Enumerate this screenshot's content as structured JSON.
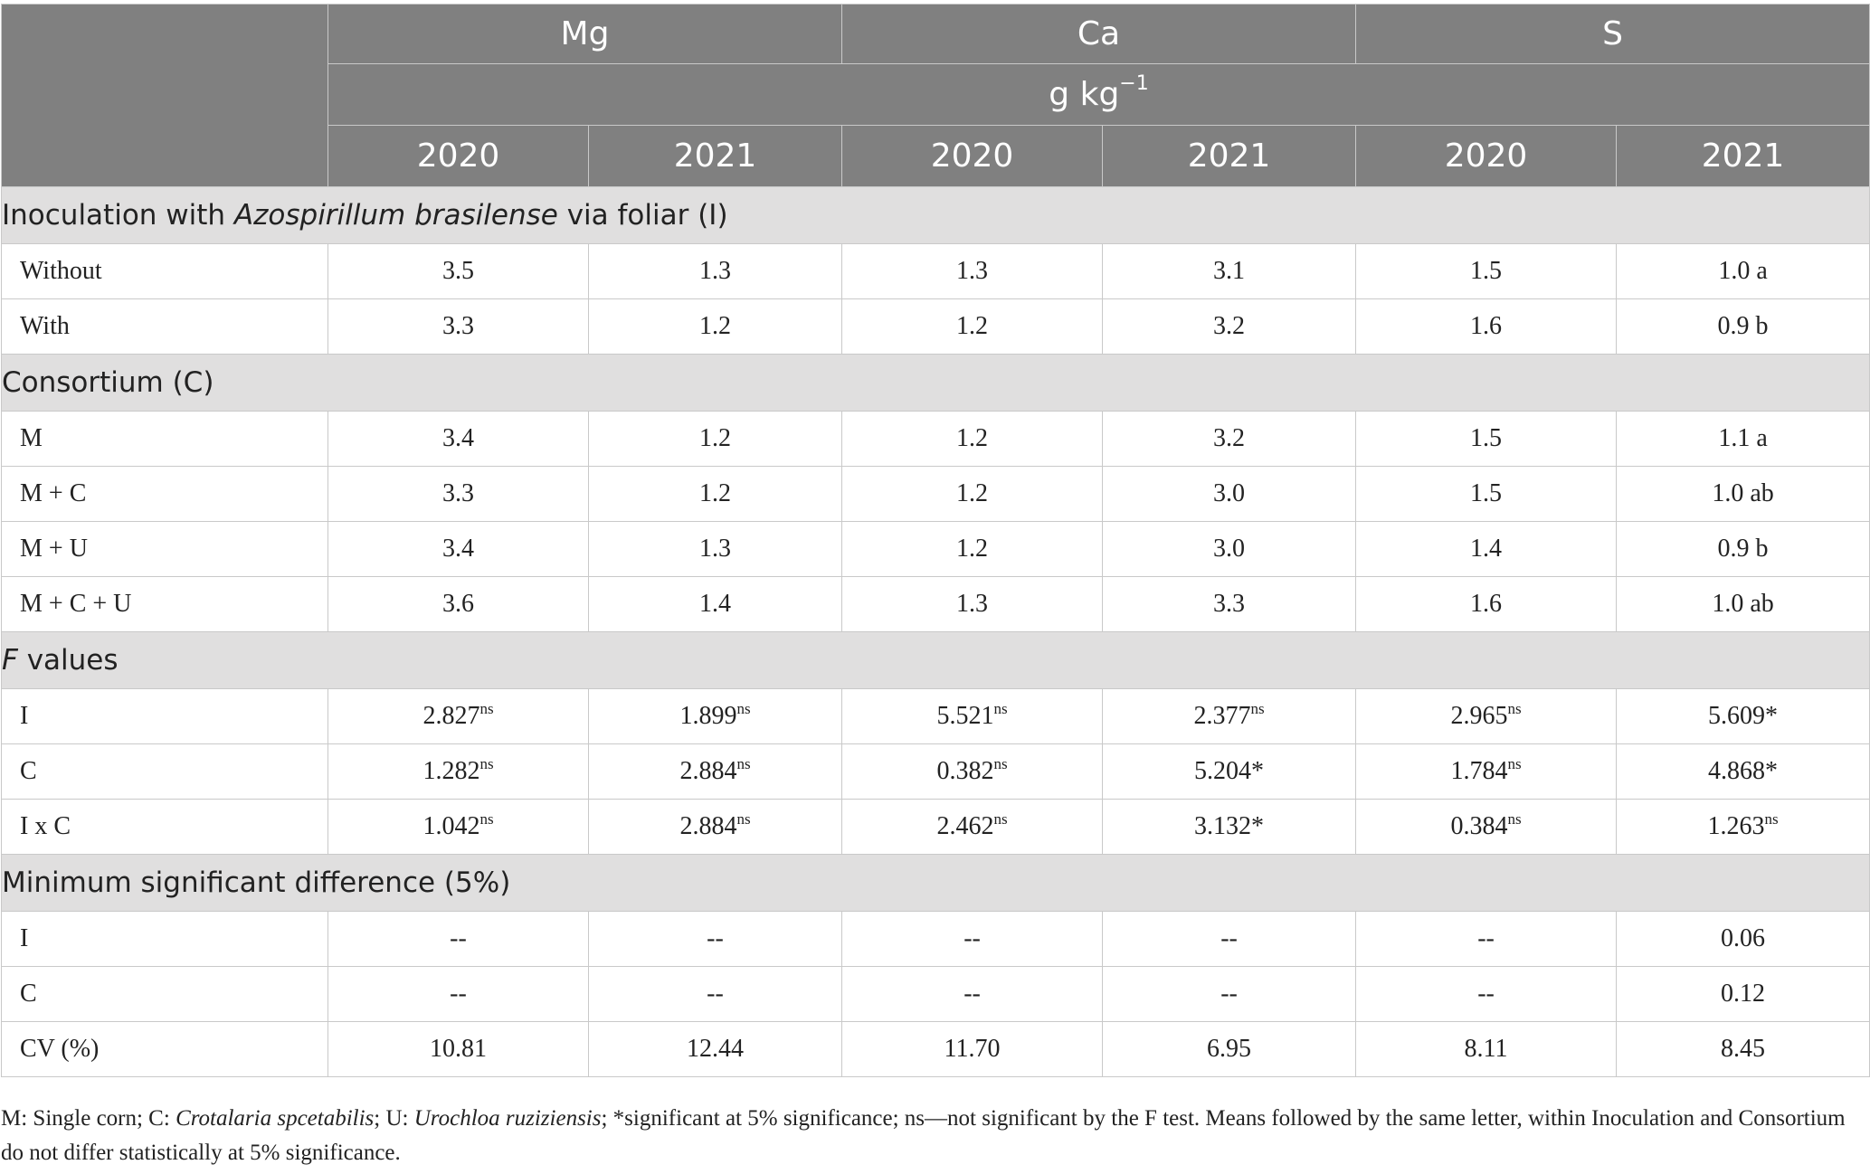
{
  "header": {
    "groups": [
      "Mg",
      "Ca",
      "S"
    ],
    "unit_base": "g kg",
    "unit_sup": "−1",
    "years": [
      "2020",
      "2021",
      "2020",
      "2021",
      "2020",
      "2021"
    ]
  },
  "sections": [
    {
      "title_pre": "Inoculation with ",
      "title_em": "Azospirillum brasilense",
      "title_post": " via foliar (I)",
      "rows": [
        {
          "label": "Without",
          "cells": [
            {
              "v": "3.5"
            },
            {
              "v": "1.3"
            },
            {
              "v": "1.3"
            },
            {
              "v": "3.1"
            },
            {
              "v": "1.5"
            },
            {
              "v": "1.0 a"
            }
          ]
        },
        {
          "label": "With",
          "cells": [
            {
              "v": "3.3"
            },
            {
              "v": "1.2"
            },
            {
              "v": "1.2"
            },
            {
              "v": "3.2"
            },
            {
              "v": "1.6"
            },
            {
              "v": "0.9 b"
            }
          ]
        }
      ]
    },
    {
      "title_pre": "Consortium (C)",
      "title_em": "",
      "title_post": "",
      "rows": [
        {
          "label": "M",
          "cells": [
            {
              "v": "3.4"
            },
            {
              "v": "1.2"
            },
            {
              "v": "1.2"
            },
            {
              "v": "3.2"
            },
            {
              "v": "1.5"
            },
            {
              "v": "1.1 a"
            }
          ]
        },
        {
          "label": "M + C",
          "cells": [
            {
              "v": "3.3"
            },
            {
              "v": "1.2"
            },
            {
              "v": "1.2"
            },
            {
              "v": "3.0"
            },
            {
              "v": "1.5"
            },
            {
              "v": "1.0 ab"
            }
          ]
        },
        {
          "label": "M + U",
          "cells": [
            {
              "v": "3.4"
            },
            {
              "v": "1.3"
            },
            {
              "v": "1.2"
            },
            {
              "v": "3.0"
            },
            {
              "v": "1.4"
            },
            {
              "v": "0.9 b"
            }
          ]
        },
        {
          "label": "M + C + U",
          "cells": [
            {
              "v": "3.6"
            },
            {
              "v": "1.4"
            },
            {
              "v": "1.3"
            },
            {
              "v": "3.3"
            },
            {
              "v": "1.6"
            },
            {
              "v": "1.0 ab"
            }
          ]
        }
      ]
    },
    {
      "title_pre": "",
      "title_em": "F",
      "title_post": " values",
      "rows": [
        {
          "label": "I",
          "cells": [
            {
              "v": "2.827",
              "sup": "ns"
            },
            {
              "v": "1.899",
              "sup": "ns"
            },
            {
              "v": "5.521",
              "sup": "ns"
            },
            {
              "v": "2.377",
              "sup": "ns"
            },
            {
              "v": "2.965",
              "sup": "ns"
            },
            {
              "v": "5.609*"
            }
          ]
        },
        {
          "label": "C",
          "cells": [
            {
              "v": "1.282",
              "sup": "ns"
            },
            {
              "v": "2.884",
              "sup": "ns"
            },
            {
              "v": "0.382",
              "sup": "ns"
            },
            {
              "v": "5.204*"
            },
            {
              "v": "1.784",
              "sup": "ns"
            },
            {
              "v": "4.868*"
            }
          ]
        },
        {
          "label": "I x C",
          "cells": [
            {
              "v": "1.042",
              "sup": "ns"
            },
            {
              "v": "2.884",
              "sup": "ns"
            },
            {
              "v": "2.462",
              "sup": "ns"
            },
            {
              "v": "3.132*"
            },
            {
              "v": "0.384",
              "sup": "ns"
            },
            {
              "v": "1.263",
              "sup": "ns"
            }
          ]
        }
      ]
    },
    {
      "title_pre": "Minimum significant difference (5%)",
      "title_em": "",
      "title_post": "",
      "rows": [
        {
          "label": "I",
          "cells": [
            {
              "v": "--"
            },
            {
              "v": "--"
            },
            {
              "v": "--"
            },
            {
              "v": "--"
            },
            {
              "v": "--"
            },
            {
              "v": "0.06"
            }
          ]
        },
        {
          "label": "C",
          "cells": [
            {
              "v": "--"
            },
            {
              "v": "--"
            },
            {
              "v": "--"
            },
            {
              "v": "--"
            },
            {
              "v": "--"
            },
            {
              "v": "0.12"
            }
          ]
        },
        {
          "label": "CV (%)",
          "cells": [
            {
              "v": "10.81"
            },
            {
              "v": "12.44"
            },
            {
              "v": "11.70"
            },
            {
              "v": "6.95"
            },
            {
              "v": "8.11"
            },
            {
              "v": "8.45"
            }
          ]
        }
      ]
    }
  ],
  "footnote": [
    {
      "t": "M: Single corn; C: ",
      "i": false
    },
    {
      "t": "Crotalaria spcetabilis",
      "i": true
    },
    {
      "t": "; U: ",
      "i": false
    },
    {
      "t": "Urochloa ruziziensis",
      "i": true
    },
    {
      "t": "; *significant at 5% significance; ns—not significant by the F test. Means followed by the same letter, within Inoculation and Consortium do not differ statistically at 5% significance.",
      "i": false
    }
  ]
}
